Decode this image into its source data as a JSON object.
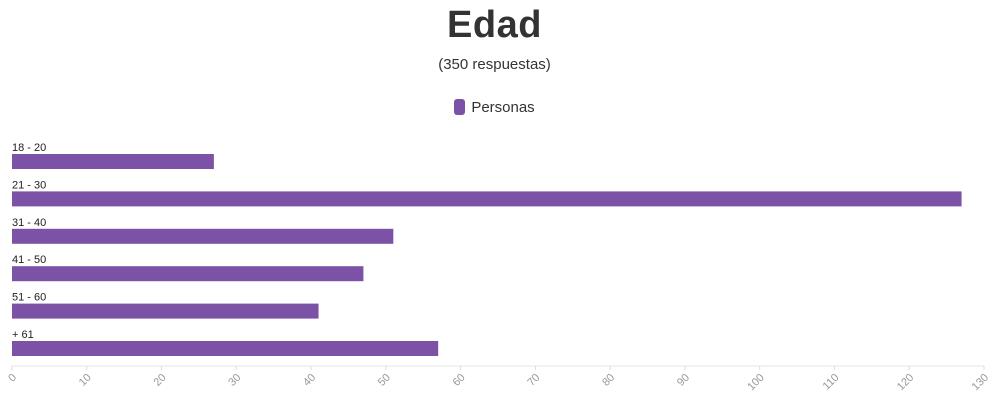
{
  "chart_data": {
    "type": "bar",
    "orientation": "horizontal",
    "title": "Edad",
    "subtitle": "(350 respuestas)",
    "categories": [
      "18 - 20",
      "21 - 30",
      "31 - 40",
      "41 - 50",
      "51 - 60",
      "+ 61"
    ],
    "series": [
      {
        "name": "Personas",
        "values": [
          27,
          127,
          51,
          47,
          41,
          57
        ],
        "color": "#7b52a6"
      }
    ],
    "xlim": [
      0,
      130
    ],
    "xticks": [
      "0",
      "10",
      "20",
      "30",
      "40",
      "50",
      "60",
      "70",
      "80",
      "90",
      "100",
      "110",
      "120",
      "130"
    ],
    "legend_position": "top-center",
    "grid": false
  }
}
